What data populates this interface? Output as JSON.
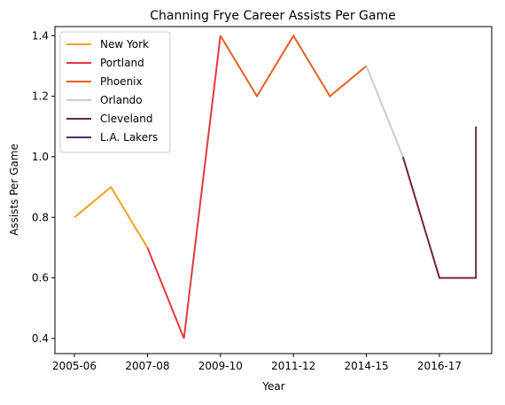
{
  "chart_data": {
    "type": "line",
    "title": "Channing Frye Career Assists Per Game",
    "xlabel": "Year",
    "ylabel": "Assists Per Game",
    "x_ticks": [
      "2005-06",
      "2007-08",
      "2009-10",
      "2011-12",
      "2014-15",
      "2016-17"
    ],
    "y_ticks": [
      "0.4",
      "0.6",
      "0.8",
      "1.0",
      "1.2",
      "1.4"
    ],
    "ylim": [
      0.35,
      1.43
    ],
    "grid": false,
    "legend_position": "top-left",
    "series": [
      {
        "name": "New York",
        "color": "#f4a124",
        "points": [
          [
            0,
            0.8
          ],
          [
            1,
            0.9
          ],
          [
            2,
            0.7
          ]
        ]
      },
      {
        "name": "Portland",
        "color": "#e03a3e",
        "points": [
          [
            2,
            0.7
          ],
          [
            3,
            0.4
          ],
          [
            4,
            1.4
          ]
        ]
      },
      {
        "name": "Phoenix",
        "color": "#e56020",
        "points": [
          [
            4,
            1.4
          ],
          [
            5,
            1.2
          ],
          [
            6,
            1.4
          ],
          [
            7,
            1.2
          ],
          [
            8,
            1.3
          ]
        ]
      },
      {
        "name": "Orlando",
        "color": "#c4ced4",
        "points": [
          [
            8,
            1.3
          ],
          [
            9,
            1.0
          ]
        ]
      },
      {
        "name": "Cleveland",
        "color": "#6f263d",
        "points": [
          [
            9,
            1.0
          ],
          [
            10,
            0.6
          ],
          [
            11,
            0.6
          ],
          [
            11,
            1.1
          ]
        ]
      },
      {
        "name": "L.A. Lakers",
        "color": "#552583",
        "points": []
      }
    ]
  }
}
